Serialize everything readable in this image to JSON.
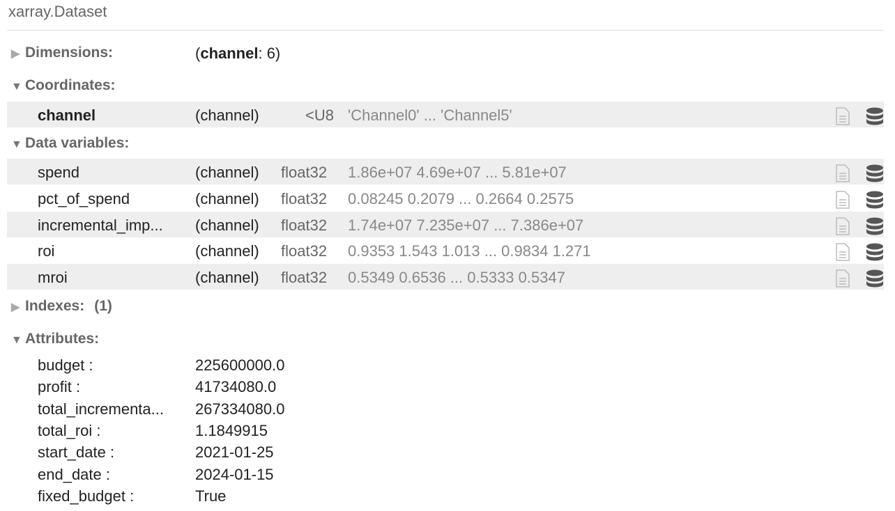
{
  "title": "xarray.Dataset",
  "sections": {
    "dimensions": {
      "label": "Dimensions:",
      "dim_name": "channel",
      "dim_size": ": 6)",
      "open_paren": "("
    },
    "coordinates": {
      "label": "Coordinates:"
    },
    "data_variables": {
      "label": "Data variables:"
    },
    "indexes": {
      "label": "Indexes:",
      "count": "(1)"
    },
    "attributes": {
      "label": "Attributes:"
    }
  },
  "coordinates": [
    {
      "name": "channel",
      "dims": "(channel)",
      "dtype": "<U8",
      "preview": "'Channel0' ... 'Channel5'"
    }
  ],
  "data_vars": [
    {
      "name": "spend",
      "dims": "(channel)",
      "dtype": "float32",
      "preview": "1.86e+07 4.69e+07 ... 5.81e+07"
    },
    {
      "name": "pct_of_spend",
      "dims": "(channel)",
      "dtype": "float32",
      "preview": "0.08245 0.2079 ... 0.2664 0.2575"
    },
    {
      "name": "incremental_imp...",
      "dims": "(channel)",
      "dtype": "float32",
      "preview": "1.74e+07 7.235e+07 ... 7.386e+07"
    },
    {
      "name": "roi",
      "dims": "(channel)",
      "dtype": "float32",
      "preview": "0.9353 1.543 1.013 ... 0.9834 1.271"
    },
    {
      "name": "mroi",
      "dims": "(channel)",
      "dtype": "float32",
      "preview": "0.5349 0.6536 ... 0.5333 0.5347"
    }
  ],
  "attributes": [
    {
      "key": "budget :",
      "value": "225600000.0"
    },
    {
      "key": "profit :",
      "value": "41734080.0"
    },
    {
      "key": "total_incrementa...",
      "value": "267334080.0"
    },
    {
      "key": "total_roi :",
      "value": "1.1849915"
    },
    {
      "key": "start_date :",
      "value": "2021-01-25"
    },
    {
      "key": "end_date :",
      "value": "2024-01-15"
    },
    {
      "key": "fixed_budget :",
      "value": "True"
    }
  ],
  "icons": [
    "file-icon",
    "database-icon"
  ]
}
